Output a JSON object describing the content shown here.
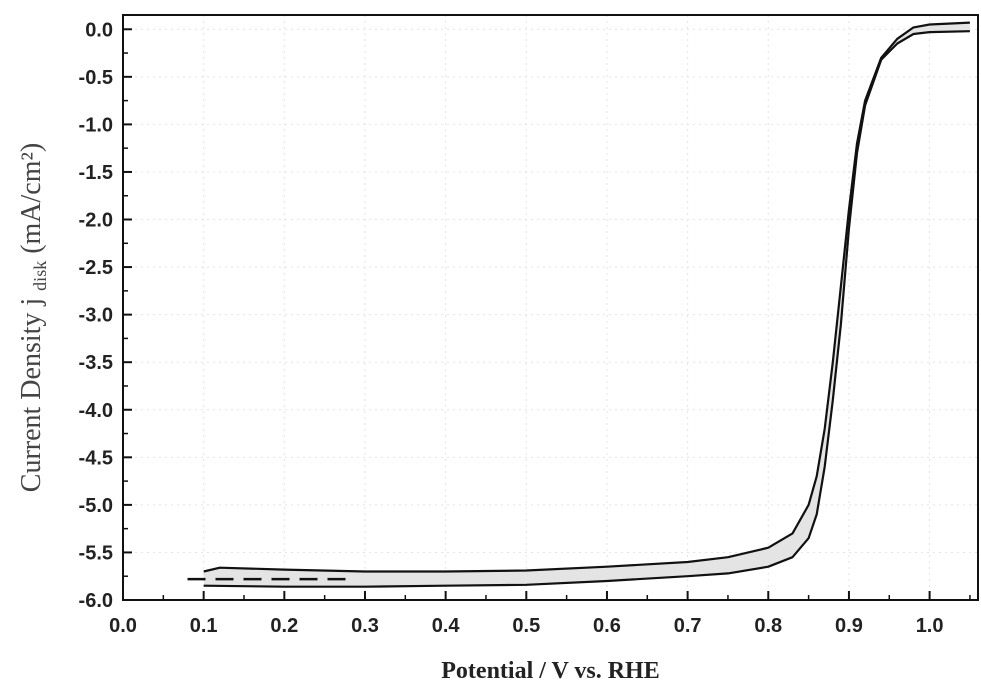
{
  "chart_data": {
    "type": "line",
    "title": "",
    "xlabel": "Potential / V vs. RHE",
    "ylabel": {
      "main": "Current Density j",
      "subscript": "disk",
      "unit": "(mA/cm²)"
    },
    "xlim": [
      0.0,
      1.06
    ],
    "ylim": [
      -6.0,
      0.15
    ],
    "xticks": [
      "0.0",
      "0.1",
      "0.2",
      "0.3",
      "0.4",
      "0.5",
      "0.6",
      "0.7",
      "0.8",
      "0.9",
      "1.0"
    ],
    "yticks": [
      "0.0",
      "-0.5",
      "-1.0",
      "-1.5",
      "-2.0",
      "-2.5",
      "-3.0",
      "-3.5",
      "-4.0",
      "-4.5",
      "-5.0",
      "-5.5",
      "-6.0"
    ],
    "grid": true,
    "legend": "none",
    "series": [
      {
        "style": "solid",
        "points": [
          [
            0.1,
            -5.7
          ],
          [
            0.12,
            -5.66
          ],
          [
            0.2,
            -5.68
          ],
          [
            0.3,
            -5.7
          ],
          [
            0.4,
            -5.7
          ],
          [
            0.5,
            -5.69
          ],
          [
            0.6,
            -5.65
          ],
          [
            0.7,
            -5.6
          ],
          [
            0.75,
            -5.55
          ],
          [
            0.8,
            -5.45
          ],
          [
            0.83,
            -5.3
          ],
          [
            0.85,
            -5.0
          ],
          [
            0.86,
            -4.7
          ],
          [
            0.87,
            -4.2
          ],
          [
            0.88,
            -3.5
          ],
          [
            0.89,
            -2.7
          ],
          [
            0.9,
            -1.9
          ],
          [
            0.91,
            -1.2
          ],
          [
            0.92,
            -0.75
          ],
          [
            0.94,
            -0.3
          ],
          [
            0.96,
            -0.1
          ],
          [
            0.98,
            0.02
          ],
          [
            1.0,
            0.05
          ],
          [
            1.05,
            0.07
          ]
        ]
      },
      {
        "style": "solid",
        "points": [
          [
            0.1,
            -5.85
          ],
          [
            0.2,
            -5.86
          ],
          [
            0.3,
            -5.86
          ],
          [
            0.4,
            -5.85
          ],
          [
            0.5,
            -5.84
          ],
          [
            0.6,
            -5.8
          ],
          [
            0.7,
            -5.75
          ],
          [
            0.75,
            -5.72
          ],
          [
            0.8,
            -5.65
          ],
          [
            0.83,
            -5.55
          ],
          [
            0.85,
            -5.35
          ],
          [
            0.86,
            -5.1
          ],
          [
            0.87,
            -4.6
          ],
          [
            0.88,
            -3.9
          ],
          [
            0.89,
            -3.1
          ],
          [
            0.9,
            -2.1
          ],
          [
            0.91,
            -1.3
          ],
          [
            0.92,
            -0.8
          ],
          [
            0.94,
            -0.32
          ],
          [
            0.96,
            -0.15
          ],
          [
            0.98,
            -0.05
          ],
          [
            1.0,
            -0.03
          ],
          [
            1.05,
            -0.02
          ]
        ]
      },
      {
        "style": "dashed",
        "points": [
          [
            0.08,
            -5.78
          ],
          [
            0.13,
            -5.78
          ],
          [
            0.28,
            -5.78
          ]
        ]
      }
    ]
  }
}
